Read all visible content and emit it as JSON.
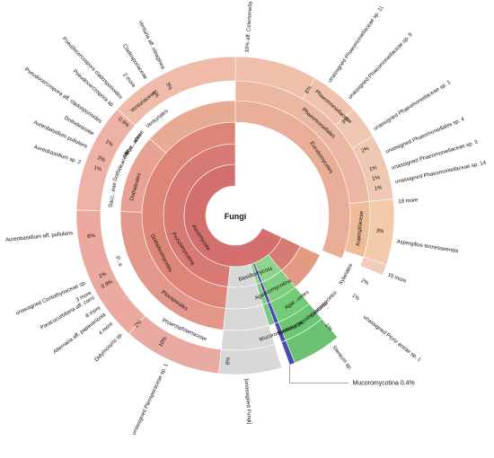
{
  "chart_data": {
    "type": "sunburst",
    "root_label": "Fungi",
    "ring_labels": [
      {
        "text": "Ascomycota",
        "ring": 0,
        "start": 115,
        "end": 360
      },
      {
        "text": "Pezizomycotina",
        "ring": 1,
        "start": 115,
        "end": 360
      },
      {
        "text": "Dothideomycetes",
        "ring": 2,
        "start": 186,
        "end": 300
      },
      {
        "text": "Pleosporales",
        "ring": 3,
        "start": 186,
        "end": 245
      },
      {
        "text": "Phaeosphaeriaceae",
        "ring": 4,
        "start": 186,
        "end": 222
      },
      {
        "text": "Dothideales",
        "ring": 3,
        "start": 272,
        "end": 300
      },
      {
        "text": "Sacc...eae",
        "ring": 4,
        "start": 272,
        "end": 287
      },
      {
        "text": "Dothideaceae",
        "ring": 4,
        "start": 287,
        "end": 300
      },
      {
        "text": "Myc...ales",
        "ring": 4,
        "start": 300,
        "end": 310
      },
      {
        "text": "Myco...aceae",
        "ring": 4,
        "start": 300,
        "end": 310
      },
      {
        "text": "Venturiales",
        "ring": 4,
        "start": 312,
        "end": 330
      },
      {
        "text": "Venturiaceae",
        "ring": 5,
        "start": 312,
        "end": 330
      },
      {
        "text": "Eurotiomycetes",
        "ring": 3,
        "start": 0,
        "end": 112
      },
      {
        "text": "Phaeomoniellales",
        "ring": 4,
        "start": 0,
        "end": 84
      },
      {
        "text": "Phaeomoniellaceae",
        "ring": 5,
        "start": 0,
        "end": 84
      },
      {
        "text": "Aspergillaceae",
        "ring": 4,
        "start": 84,
        "end": 108
      },
      {
        "text": "P...e",
        "ring": 4,
        "start": 245,
        "end": 252
      },
      {
        "text": "Basidiomycota",
        "ring": 1,
        "start": 152,
        "end": 170
      },
      {
        "text": "Agaricomycotina",
        "ring": 2,
        "start": 144,
        "end": 162
      },
      {
        "text": "Agar...cetes",
        "ring": 3,
        "start": 132,
        "end": 156
      },
      {
        "text": "Stereaceae",
        "ring": 4,
        "start": 148,
        "end": 160
      },
      {
        "text": "Xylariales",
        "ring": 4,
        "start": 112,
        "end": 124
      },
      {
        "text": "Leotiomycetes",
        "ring": 4,
        "start": 130,
        "end": 140
      },
      {
        "text": "Dipodascaceae",
        "ring": 4,
        "start": 138,
        "end": 146
      },
      {
        "text": "Mucoromycotina",
        "ring": 4,
        "start": 159,
        "end": 161
      }
    ],
    "outer_labels": [
      {
        "text": "10% aff. Celeriomella sp. 11",
        "angle": 4
      },
      {
        "text": "6%",
        "angle": 30
      },
      {
        "text": "unassigned Phaeomoniellaceae sp. 11",
        "angle": 35
      },
      {
        "text": "unassigned Phaeomoniellaceae sp. 9",
        "angle": 44
      },
      {
        "text": "3%",
        "angle": 49
      },
      {
        "text": "unassigned Phaeomoniellaceae sp. 1",
        "angle": 58
      },
      {
        "text": "2%",
        "angle": 63
      },
      {
        "text": "unassigned Phaeomoniellales sp. 4",
        "angle": 67
      },
      {
        "text": "1%",
        "angle": 71
      },
      {
        "text": "unassigned Phaeomoniellaceae sp. 3",
        "angle": 73
      },
      {
        "text": "1%",
        "angle": 75
      },
      {
        "text": "unassigned Phaeomoniellaceae sp. 14",
        "angle": 78
      },
      {
        "text": "1%",
        "angle": 79
      },
      {
        "text": "19 more",
        "angle": 85
      },
      {
        "text": "3%",
        "angle": 96
      },
      {
        "text": "Aspergillus tennesseensis",
        "angle": 99
      },
      {
        "text": "10 more",
        "angle": 111
      },
      {
        "text": "2%",
        "angle": 117
      },
      {
        "text": "1%",
        "angle": 124
      },
      {
        "text": "unassigned Peziz aceae sp. 1",
        "angle": 128
      },
      {
        "text": "1%",
        "angle": 140
      },
      {
        "text": "Stereum sp.",
        "angle": 143
      },
      {
        "text": "8%",
        "angle": 183
      },
      {
        "text": "[unassigned Fungi]",
        "angle": 176
      },
      {
        "text": "10%",
        "angle": 210
      },
      {
        "text": "unassigned Pleosporaceae sp. 1",
        "angle": 205
      },
      {
        "text": "2%",
        "angle": 222
      },
      {
        "text": "Didymosyris sp.",
        "angle": 224
      },
      {
        "text": "4 more",
        "angle": 229
      },
      {
        "text": "Alternaria aff. papavericola",
        "angle": 233
      },
      {
        "text": "8 more",
        "angle": 236
      },
      {
        "text": "Paracucurbitaria aff. corni",
        "angle": 240
      },
      {
        "text": "3 more",
        "angle": 242
      },
      {
        "text": "0.9%",
        "angle": 242
      },
      {
        "text": "1%",
        "angle": 246
      },
      {
        "text": "unassigned Coniothyriaceae sp.",
        "angle": 246
      },
      {
        "text": "8%",
        "angle": 262
      },
      {
        "text": "Aureobasidium aff. pullulans",
        "angle": 264
      },
      {
        "text": "1%",
        "angle": 289
      },
      {
        "text": "Aureobasidium sp. 2",
        "angle": 289
      },
      {
        "text": "2%",
        "angle": 293
      },
      {
        "text": "Aureobasidium pullulans",
        "angle": 295
      },
      {
        "text": "Dothideaceae",
        "angle": 300
      },
      {
        "text": "1%",
        "angle": 300
      },
      {
        "text": "Pseudocercospora aff. cladosporioides",
        "angle": 305
      },
      {
        "text": "0.9%",
        "angle": 310
      },
      {
        "text": "Pseudocercospora sp.",
        "angle": 312
      },
      {
        "text": "Pseudocercospora cladosporioides",
        "angle": 316
      },
      {
        "text": "2 more",
        "angle": 322
      },
      {
        "text": "Cladosporiaceae",
        "angle": 327
      },
      {
        "text": "1%",
        "angle": 327
      },
      {
        "text": "Venturia aff. oleaginea",
        "angle": 334
      },
      {
        "text": "3%",
        "angle": 333
      }
    ],
    "extra_label": {
      "text": "Mucoromycotina",
      "value": "0.4%"
    },
    "segments": [
      {
        "ring": 0,
        "start": 115,
        "end": 360,
        "color": "#d36f6f"
      },
      {
        "ring": 1,
        "start": 115,
        "end": 360,
        "color": "#d87a74"
      },
      {
        "ring": 2,
        "start": 186,
        "end": 360,
        "color": "#dd8678"
      },
      {
        "ring": 2,
        "start": 115,
        "end": 186,
        "color": "#e39c83"
      },
      {
        "ring": 3,
        "start": 186,
        "end": 272,
        "color": "#e3968a"
      },
      {
        "ring": 3,
        "start": 272,
        "end": 312,
        "color": "#e9a193"
      },
      {
        "ring": 3,
        "start": 312,
        "end": 360,
        "color": "#e7aa92"
      },
      {
        "ring": 3,
        "start": 0,
        "end": 112,
        "color": "#e9ae98"
      },
      {
        "ring": 4,
        "start": 0,
        "end": 84,
        "color": "#eab7a2"
      },
      {
        "ring": 4,
        "start": 84,
        "end": 108,
        "color": "#eebd98"
      },
      {
        "ring": 5,
        "start": 0,
        "end": 30,
        "color": "#efbfaa"
      },
      {
        "ring": 5,
        "start": 30,
        "end": 48,
        "color": "#efc3ad"
      },
      {
        "ring": 5,
        "start": 48,
        "end": 60,
        "color": "#efc6b0"
      },
      {
        "ring": 5,
        "start": 60,
        "end": 84,
        "color": "#efc8b4"
      },
      {
        "ring": 5,
        "start": 84,
        "end": 108,
        "color": "#f2cbaa"
      },
      {
        "ring": 5,
        "start": 186,
        "end": 222,
        "color": "#e9aaa3"
      },
      {
        "ring": 5,
        "start": 222,
        "end": 272,
        "color": "#eba9a0"
      },
      {
        "ring": 5,
        "start": 272,
        "end": 312,
        "color": "#eeb1a6"
      },
      {
        "ring": 5,
        "start": 312,
        "end": 360,
        "color": "#efbca9"
      },
      {
        "ring": 1,
        "start": 140,
        "end": 163,
        "color": "#8fd48a"
      },
      {
        "ring": 2,
        "start": 140,
        "end": 163,
        "color": "#7fcf80"
      },
      {
        "ring": 3,
        "start": 140,
        "end": 163,
        "color": "#74cb7a"
      },
      {
        "ring": 4,
        "start": 140,
        "end": 158,
        "color": "#6dc673"
      },
      {
        "ring": 5,
        "start": 140,
        "end": 158,
        "color": "#6ac171"
      },
      {
        "ring": 1,
        "start": 158,
        "end": 160,
        "color": "#4a4ab0"
      },
      {
        "ring": 2,
        "start": 158,
        "end": 160,
        "color": "#4a4ab0"
      },
      {
        "ring": 3,
        "start": 158,
        "end": 160,
        "color": "#4a4ab0"
      },
      {
        "ring": 4,
        "start": 158,
        "end": 160,
        "color": "#4a4ab0"
      },
      {
        "ring": 5,
        "start": 158,
        "end": 160,
        "color": "#4a4ab0"
      },
      {
        "ring": 1,
        "start": 163,
        "end": 186,
        "color": "#d8d8d8"
      },
      {
        "ring": 2,
        "start": 163,
        "end": 186,
        "color": "#d8d8d8"
      },
      {
        "ring": 3,
        "start": 163,
        "end": 186,
        "color": "#d8d8d8"
      },
      {
        "ring": 4,
        "start": 163,
        "end": 186,
        "color": "#d8d8d8"
      },
      {
        "ring": 5,
        "start": 163,
        "end": 186,
        "color": "#d8d8d8"
      }
    ]
  }
}
